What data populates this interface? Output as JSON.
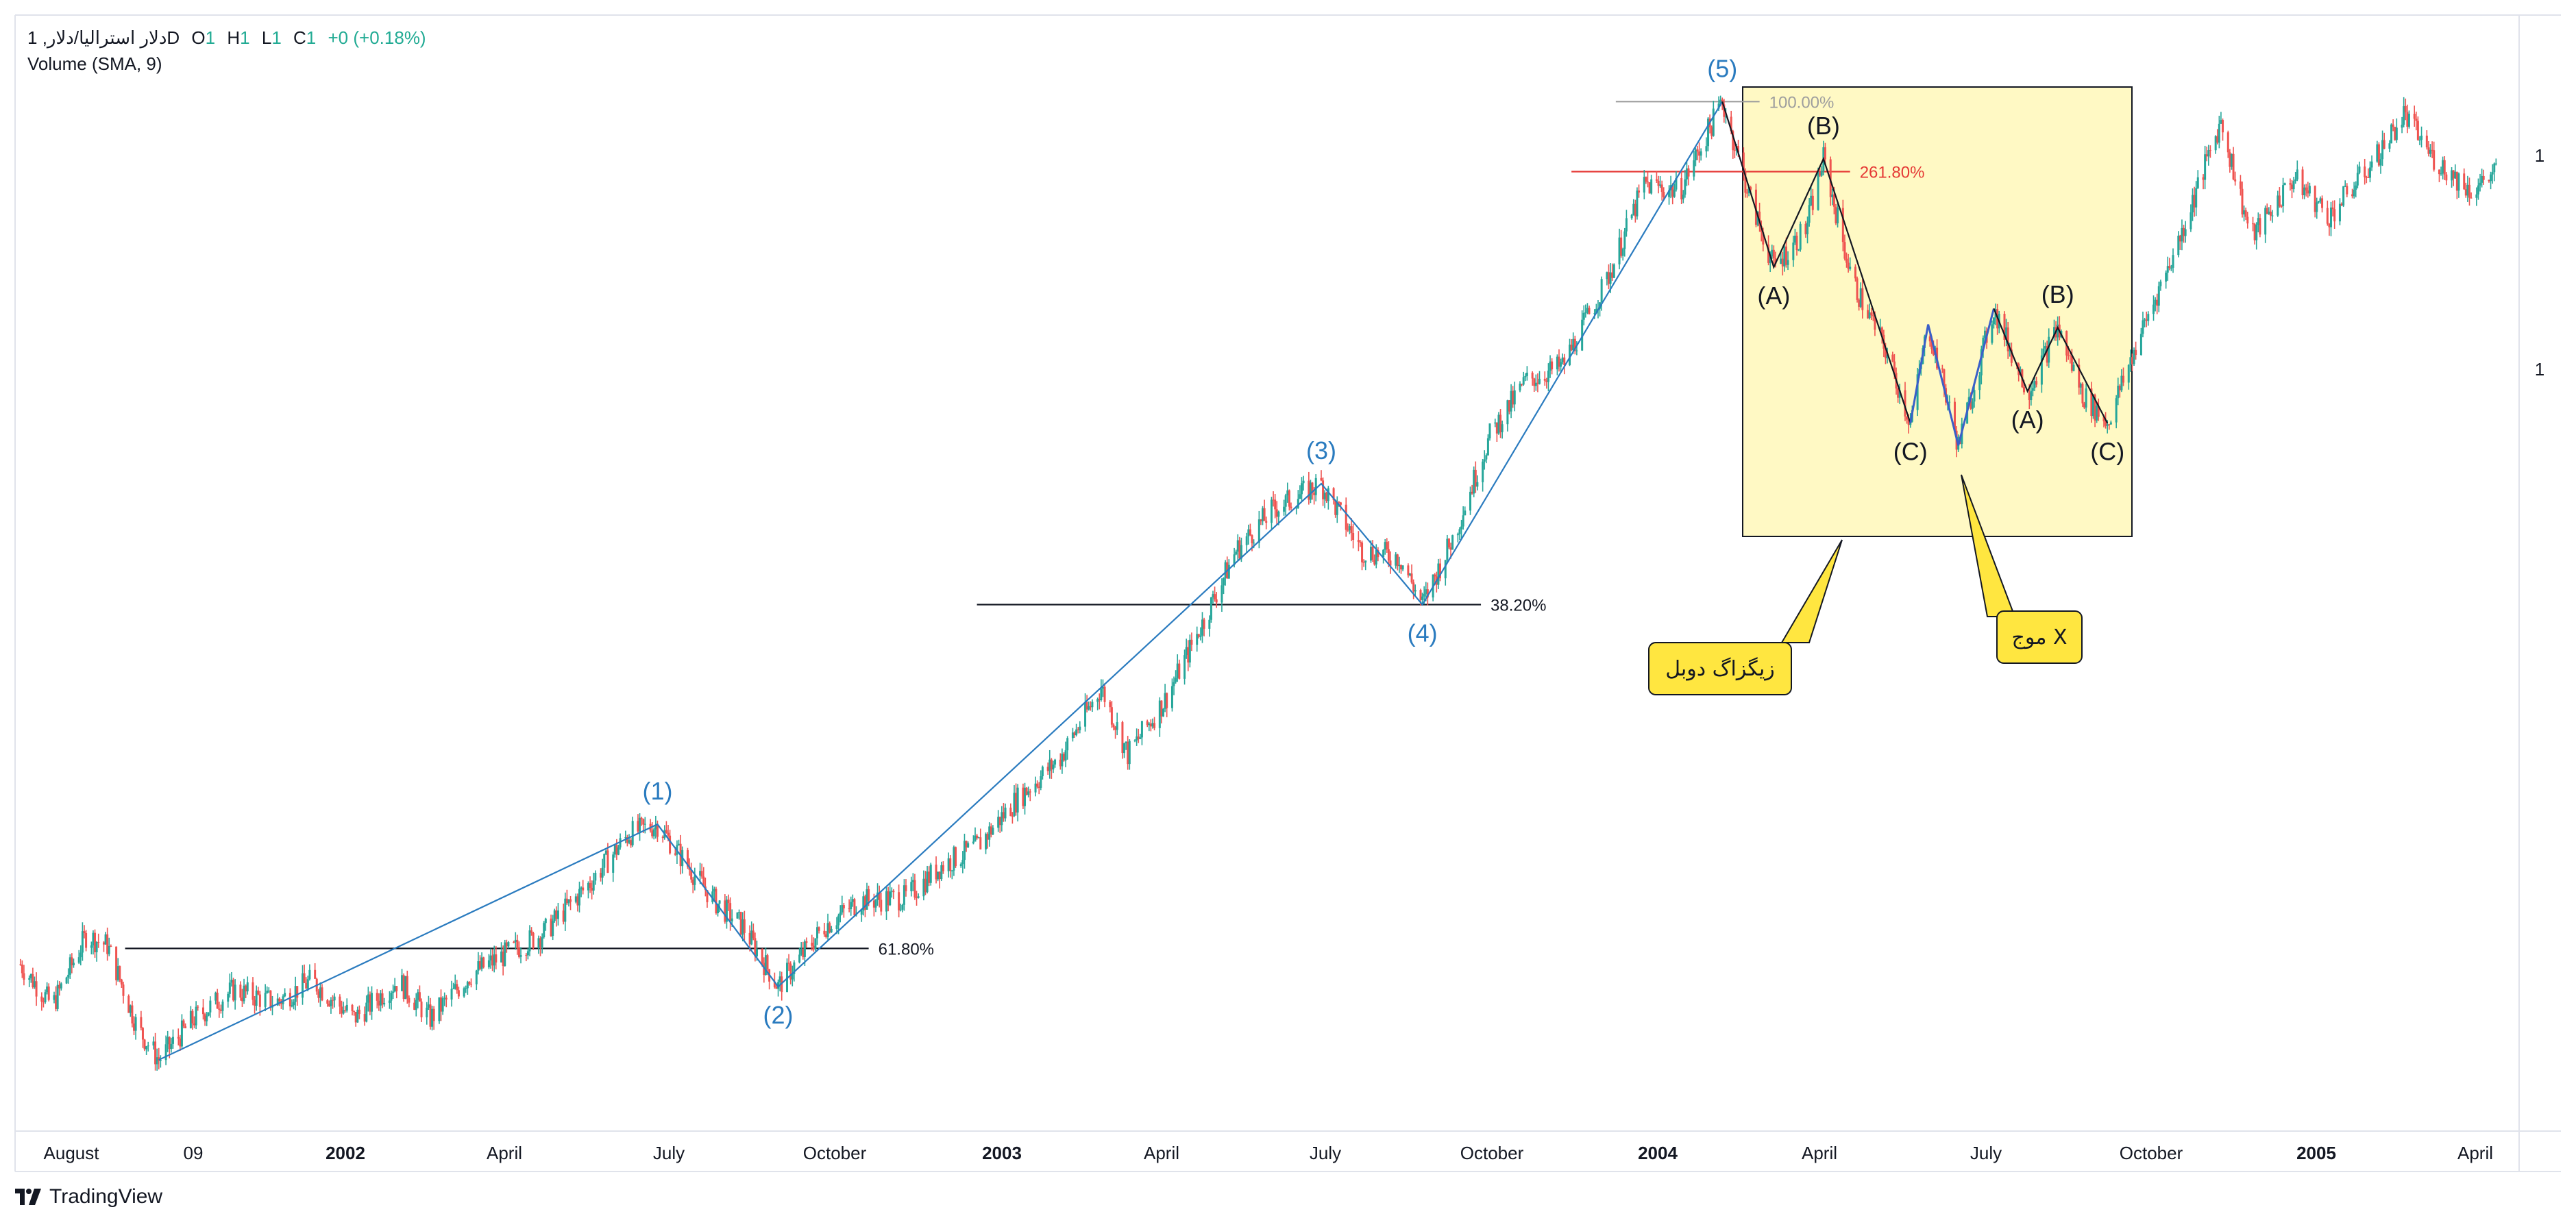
{
  "legend": {
    "symbol": "دلار استرالیا/دلار, 1D",
    "open_label": "O",
    "open_value": "1",
    "high_label": "H",
    "high_value": "1",
    "low_label": "L",
    "low_value": "1",
    "close_label": "C",
    "close_value": "1",
    "change": "+0 (+0.18%)",
    "indicator": "Volume (SMA, 9)"
  },
  "brand": {
    "name": "TradingView"
  },
  "colors": {
    "up": "#26a69a",
    "down": "#ef5350",
    "wave": "#2a7bbf",
    "callout_bg": "#ffe640",
    "box_bg": "#fff9c4",
    "fib_red": "#e53935"
  },
  "right_axis_labels": [
    "1",
    "1"
  ],
  "chart_data": {
    "type": "candlestick",
    "x_ticks": [
      {
        "label": "August",
        "bold": false
      },
      {
        "label": "09",
        "bold": false
      },
      {
        "label": "2002",
        "bold": true
      },
      {
        "label": "April",
        "bold": false
      },
      {
        "label": "July",
        "bold": false
      },
      {
        "label": "October",
        "bold": false
      },
      {
        "label": "2003",
        "bold": true
      },
      {
        "label": "April",
        "bold": false
      },
      {
        "label": "July",
        "bold": false
      },
      {
        "label": "October",
        "bold": false
      },
      {
        "label": "2004",
        "bold": true
      },
      {
        "label": "April",
        "bold": false
      },
      {
        "label": "July",
        "bold": false
      },
      {
        "label": "October",
        "bold": false
      },
      {
        "label": "2005",
        "bold": true
      },
      {
        "label": "April",
        "bold": false
      }
    ],
    "price_path": [
      [
        "2001-07-04",
        0.525
      ],
      [
        "2001-07-22",
        0.512
      ],
      [
        "2001-08-10",
        0.534
      ],
      [
        "2001-08-22",
        0.531
      ],
      [
        "2001-09-08",
        0.505
      ],
      [
        "2001-09-20",
        0.495
      ],
      [
        "2001-10-10",
        0.508
      ],
      [
        "2001-11-01",
        0.517
      ],
      [
        "2001-11-25",
        0.513
      ],
      [
        "2001-12-15",
        0.52
      ],
      [
        "2002-01-08",
        0.508
      ],
      [
        "2002-02-02",
        0.52
      ],
      [
        "2002-02-20",
        0.508
      ],
      [
        "2002-03-15",
        0.522
      ],
      [
        "2002-04-25",
        0.535
      ],
      [
        "2002-05-20",
        0.55
      ],
      [
        "2002-06-12",
        0.566
      ],
      [
        "2002-06-28",
        0.569
      ],
      [
        "2002-07-15",
        0.556
      ],
      [
        "2002-07-30",
        0.545
      ],
      [
        "2002-08-15",
        0.537
      ],
      [
        "2002-09-04",
        0.518
      ],
      [
        "2002-09-30",
        0.537
      ],
      [
        "2002-10-20",
        0.545
      ],
      [
        "2002-11-15",
        0.546
      ],
      [
        "2002-12-05",
        0.556
      ],
      [
        "2002-12-25",
        0.562
      ],
      [
        "2003-01-15",
        0.576
      ],
      [
        "2003-02-10",
        0.59
      ],
      [
        "2003-03-05",
        0.612
      ],
      [
        "2003-03-20",
        0.591
      ],
      [
        "2003-04-10",
        0.608
      ],
      [
        "2003-05-01",
        0.632
      ],
      [
        "2003-05-20",
        0.655
      ],
      [
        "2003-06-10",
        0.668
      ],
      [
        "2003-07-07",
        0.676
      ],
      [
        "2003-07-30",
        0.655
      ],
      [
        "2003-08-20",
        0.653
      ],
      [
        "2003-09-02",
        0.638
      ],
      [
        "2003-09-20",
        0.66
      ],
      [
        "2003-10-10",
        0.691
      ],
      [
        "2003-10-30",
        0.708
      ],
      [
        "2003-11-20",
        0.713
      ],
      [
        "2003-12-15",
        0.74
      ],
      [
        "2004-01-05",
        0.77
      ],
      [
        "2004-01-25",
        0.768
      ],
      [
        "2004-02-18",
        0.796
      ],
      [
        "2004-03-05",
        0.765
      ],
      [
        "2004-03-18",
        0.744
      ],
      [
        "2004-04-05",
        0.756
      ],
      [
        "2004-04-15",
        0.778
      ],
      [
        "2004-05-01",
        0.74
      ],
      [
        "2004-05-20",
        0.718
      ],
      [
        "2004-06-03",
        0.695
      ],
      [
        "2004-06-13",
        0.726
      ],
      [
        "2004-06-30",
        0.688
      ],
      [
        "2004-07-20",
        0.731
      ],
      [
        "2004-08-08",
        0.705
      ],
      [
        "2004-08-25",
        0.725
      ],
      [
        "2004-09-08",
        0.704
      ],
      [
        "2004-09-22",
        0.695
      ],
      [
        "2004-10-10",
        0.722
      ],
      [
        "2004-11-01",
        0.752
      ],
      [
        "2004-11-25",
        0.79
      ],
      [
        "2004-12-12",
        0.753
      ],
      [
        "2005-01-05",
        0.772
      ],
      [
        "2005-01-25",
        0.76
      ],
      [
        "2005-02-20",
        0.778
      ],
      [
        "2005-03-08",
        0.792
      ],
      [
        "2005-03-25",
        0.778
      ],
      [
        "2005-04-15",
        0.768
      ],
      [
        "2005-05-01",
        0.775
      ]
    ],
    "elliott_waves": [
      {
        "label": "(1)",
        "date": "2002-06-28",
        "price": 0.569
      },
      {
        "label": "(2)",
        "date": "2002-09-04",
        "price": 0.518
      },
      {
        "label": "(3)",
        "date": "2003-07-07",
        "price": 0.676
      },
      {
        "label": "(4)",
        "date": "2003-09-02",
        "price": 0.638
      },
      {
        "label": "(5)",
        "date": "2004-02-18",
        "price": 0.796
      }
    ],
    "correction_waves": [
      {
        "label": "(A)",
        "date": "2004-03-18",
        "price": 0.744
      },
      {
        "label": "(B)",
        "date": "2004-04-15",
        "price": 0.778
      },
      {
        "label": "(C)",
        "date": "2004-06-03",
        "price": 0.695
      },
      {
        "label": "(A)",
        "date": "2004-08-08",
        "price": 0.705
      },
      {
        "label": "(B)",
        "date": "2004-08-25",
        "price": 0.725
      },
      {
        "label": "(C)",
        "date": "2004-09-22",
        "price": 0.695
      }
    ],
    "fib_levels": [
      {
        "label": "61.80%",
        "price": 0.53
      },
      {
        "label": "38.20%",
        "price": 0.638
      },
      {
        "label": "261.80%",
        "price": 0.774
      },
      {
        "label": "100.00%",
        "price": 0.796
      }
    ],
    "callouts": [
      {
        "text": "زیگزاگ دوبل"
      },
      {
        "text": "موج X"
      }
    ]
  }
}
